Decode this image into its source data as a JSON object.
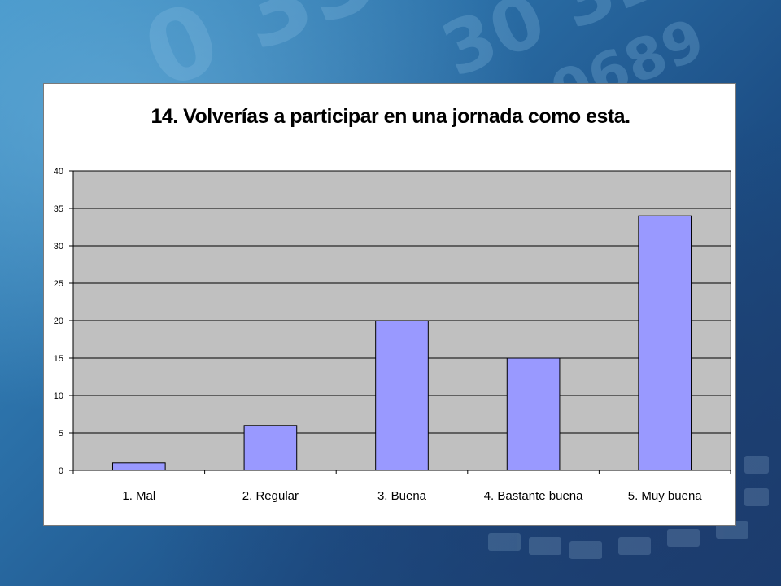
{
  "chart_data": {
    "type": "bar",
    "title": "14. Volverías a participar en una jornada como esta.",
    "xlabel": "",
    "ylabel": "",
    "categories": [
      "1. Mal",
      "2. Regular",
      "3. Buena",
      "4. Bastante buena",
      "5. Muy buena"
    ],
    "values": [
      1,
      6,
      20,
      15,
      34
    ],
    "ylim": [
      0,
      40
    ],
    "yticks": [
      0,
      5,
      10,
      15,
      20,
      25,
      30,
      35,
      40
    ],
    "grid": true,
    "legend": "none",
    "colors": {
      "bar": "#9999ff",
      "bar_border": "#000000",
      "plot_background": "#c0c0c0",
      "grid": "#000000"
    }
  }
}
